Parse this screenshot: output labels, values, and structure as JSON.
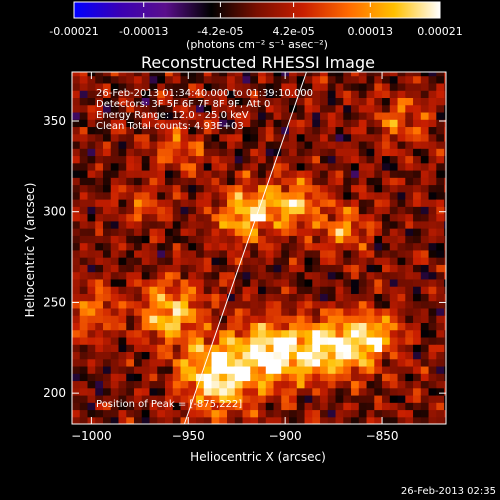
{
  "chart_data": {
    "type": "heatmap",
    "title": "Reconstructed RHESSI Image",
    "xlabel": "Heliocentric X (arcsec)",
    "ylabel": "Heliocentric Y (arcsec)",
    "xlim": [
      -1010,
      -817
    ],
    "ylim": [
      183,
      377
    ],
    "xticks": [
      -1000,
      -950,
      -900,
      -850
    ],
    "yticks": [
      200,
      250,
      300,
      350
    ],
    "xtick_labels": [
      "−1000",
      "−950",
      "−900",
      "−850"
    ],
    "ytick_labels": [
      "200",
      "250",
      "300",
      "350"
    ],
    "colorbar": {
      "range": [
        -0.00021,
        0.00021
      ],
      "ticks": [
        -0.00021,
        -0.00013,
        -4.2e-05,
        4.2e-05,
        0.00013,
        0.00021
      ],
      "tick_labels": [
        "-0.00021",
        "-0.00013",
        "-4.2e-05",
        "4.2e-05",
        "0.00013",
        "0.00021"
      ],
      "units": "(photons cm⁻² s⁻¹ asec⁻²)",
      "colormap": [
        "#0000ff",
        "#3a00b4",
        "#5a0f8c",
        "#000000",
        "#7a0f00",
        "#c81e00",
        "#ff6a00",
        "#ffc000",
        "#ffffff"
      ]
    },
    "annotations": [
      "26-Feb-2013 01:34:40.000  to  01:39:10.000",
      "Detectors: 3F 5F 6F 7F 8F 9F, Att 0",
      "Energy Range: 12.0 - 25.0 keV",
      "Clean     Total counts: 4.93E+03"
    ],
    "peak_label": "Position of Peak = [-875,222]",
    "peak": [
      -875,
      222
    ],
    "limb_line": [
      [
        -952,
        183
      ],
      [
        -889,
        377
      ]
    ],
    "grid": {
      "x0": -1010,
      "y0": 183,
      "pixel_size": 4,
      "blobs": [
        {
          "x": -935,
          "y": 210,
          "amp": 1.0,
          "s": 14
        },
        {
          "x": -905,
          "y": 222,
          "amp": 0.95,
          "s": 13
        },
        {
          "x": -875,
          "y": 225,
          "amp": 0.9,
          "s": 12
        },
        {
          "x": -855,
          "y": 232,
          "amp": 0.7,
          "s": 10
        },
        {
          "x": -960,
          "y": 245,
          "amp": 0.75,
          "s": 12
        },
        {
          "x": -1000,
          "y": 245,
          "amp": 0.5,
          "s": 10
        },
        {
          "x": -920,
          "y": 300,
          "amp": 0.85,
          "s": 11
        },
        {
          "x": -895,
          "y": 305,
          "amp": 0.7,
          "s": 9
        },
        {
          "x": -870,
          "y": 290,
          "amp": 0.55,
          "s": 9
        },
        {
          "x": -955,
          "y": 335,
          "amp": 0.45,
          "s": 9
        },
        {
          "x": -975,
          "y": 305,
          "amp": 0.35,
          "s": 9
        },
        {
          "x": -840,
          "y": 350,
          "amp": 0.45,
          "s": 10
        }
      ]
    }
  },
  "footer": {
    "timestamp": "26-Feb-2013 02:35"
  }
}
